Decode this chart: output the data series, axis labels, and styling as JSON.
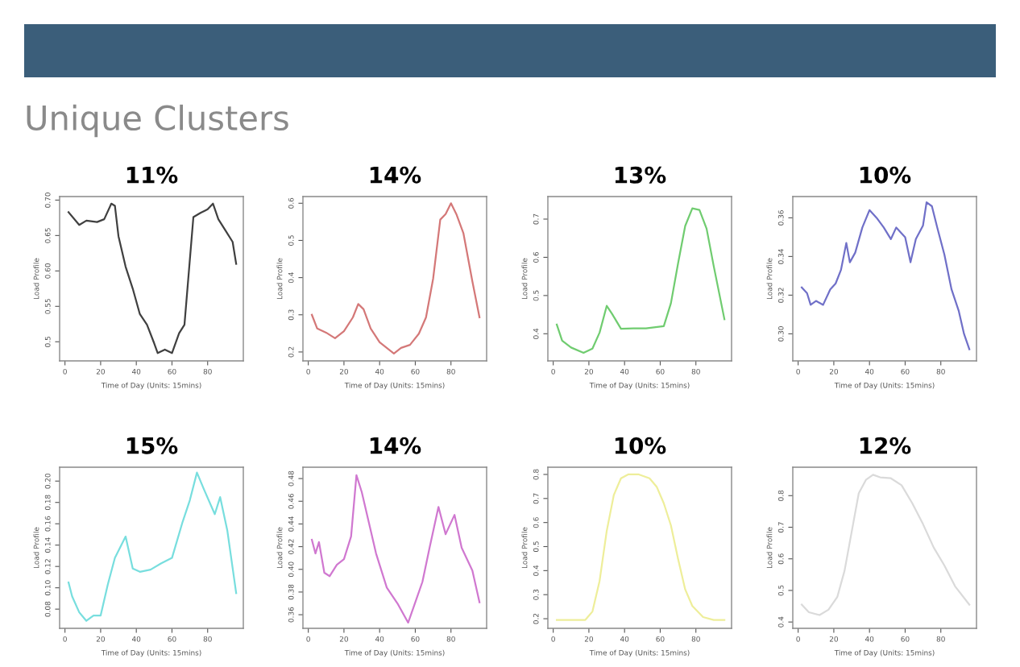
{
  "chart_data": [
    {
      "type": "other",
      "title": "Unique Clusters"
    },
    {
      "type": "line",
      "title": "11%",
      "xlabel": "Time of Day (Units: 15mins)",
      "ylabel": "Load Profile",
      "xlim": [
        -3,
        100
      ],
      "xticks": [
        0,
        20,
        40,
        60,
        80
      ],
      "ylim": [
        0.473,
        0.705
      ],
      "yticks": [
        0.5,
        0.55,
        {
          "value": 0.6,
          "label": "0.60"
        },
        0.65,
        {
          "value": 0.7,
          "label": "0.70"
        }
      ],
      "x": [
        2,
        8,
        12,
        18,
        22,
        26,
        28,
        30,
        34,
        38,
        42,
        46,
        50,
        52,
        56,
        60,
        64,
        67,
        72,
        76,
        80,
        83,
        86,
        90,
        94,
        96
      ],
      "series": [
        {
          "color": "#404040",
          "values": [
            0.683,
            0.665,
            0.671,
            0.669,
            0.673,
            0.695,
            0.692,
            0.649,
            0.606,
            0.575,
            0.539,
            0.524,
            0.498,
            0.484,
            0.489,
            0.484,
            0.512,
            0.524,
            0.676,
            0.682,
            0.687,
            0.695,
            0.673,
            0.657,
            0.641,
            0.61
          ]
        }
      ]
    },
    {
      "type": "line",
      "title": "14%",
      "xlabel": "Time of Day (Units: 15mins)",
      "ylabel": "Load Profile",
      "xlim": [
        -3,
        100
      ],
      "xticks": [
        0,
        20,
        40,
        60,
        80
      ],
      "ylim": [
        0.176,
        0.618
      ],
      "yticks": [
        0.2,
        0.3,
        0.4,
        0.5,
        0.6
      ],
      "x": [
        2,
        5,
        10,
        15,
        20,
        25,
        28,
        31,
        35,
        40,
        48,
        52,
        57,
        62,
        66,
        70,
        74,
        77,
        80,
        83,
        87,
        92,
        96
      ],
      "series": [
        {
          "color": "#d47878",
          "values": [
            0.3,
            0.263,
            0.252,
            0.237,
            0.256,
            0.293,
            0.329,
            0.315,
            0.263,
            0.226,
            0.196,
            0.211,
            0.219,
            0.249,
            0.293,
            0.397,
            0.556,
            0.571,
            0.6,
            0.571,
            0.519,
            0.39,
            0.293
          ]
        }
      ]
    },
    {
      "type": "line",
      "title": "13%",
      "xlabel": "Time of Day (Units: 15mins)",
      "ylabel": "Load Profile",
      "xlim": [
        -3,
        100
      ],
      "xticks": [
        0,
        20,
        40,
        60,
        80
      ],
      "ylim": [
        0.329,
        0.759
      ],
      "yticks": [
        0.4,
        0.5,
        0.6,
        0.7
      ],
      "x": [
        2,
        5,
        10,
        17,
        22,
        26,
        30,
        33,
        38,
        45,
        52,
        62,
        66,
        70,
        74,
        78,
        82,
        86,
        90,
        96
      ],
      "series": [
        {
          "color": "#70cc70",
          "values": [
            0.424,
            0.382,
            0.364,
            0.35,
            0.361,
            0.403,
            0.473,
            0.452,
            0.413,
            0.414,
            0.414,
            0.42,
            0.48,
            0.584,
            0.682,
            0.728,
            0.724,
            0.675,
            0.577,
            0.438
          ]
        }
      ]
    },
    {
      "type": "line",
      "title": "10%",
      "xlabel": "Time of Day (Units: 15mins)",
      "ylabel": "Load Profile",
      "xlim": [
        -3,
        100
      ],
      "xticks": [
        0,
        20,
        40,
        60,
        80
      ],
      "ylim": [
        0.286,
        0.371
      ],
      "yticks": [
        {
          "value": 0.3,
          "label": "0.30"
        },
        0.32,
        0.34,
        0.36
      ],
      "x": [
        2,
        5,
        7,
        10,
        14,
        18,
        21,
        24,
        27,
        29,
        32,
        36,
        40,
        44,
        48,
        52,
        55,
        60,
        63,
        66,
        70,
        72,
        75,
        78,
        82,
        86,
        90,
        93,
        96
      ],
      "series": [
        {
          "color": "#7070c8",
          "values": [
            0.324,
            0.321,
            0.315,
            0.317,
            0.315,
            0.323,
            0.326,
            0.333,
            0.347,
            0.337,
            0.342,
            0.355,
            0.364,
            0.36,
            0.355,
            0.349,
            0.355,
            0.35,
            0.337,
            0.349,
            0.356,
            0.368,
            0.366,
            0.355,
            0.341,
            0.323,
            0.312,
            0.3,
            0.292
          ]
        }
      ]
    },
    {
      "type": "line",
      "title": "15%",
      "xlabel": "Time of Day (Units: 15mins)",
      "ylabel": "Load Profile",
      "xlim": [
        -3,
        100
      ],
      "xticks": [
        0,
        20,
        40,
        60,
        80
      ],
      "ylim": [
        0.062,
        0.213
      ],
      "yticks": [
        0.08,
        {
          "value": 0.1,
          "label": "0.10"
        },
        0.12,
        0.14,
        0.16,
        0.18,
        {
          "value": 0.2,
          "label": "0.20"
        }
      ],
      "x": [
        2,
        4,
        8,
        12,
        16,
        20,
        24,
        28,
        34,
        38,
        42,
        48,
        54,
        60,
        66,
        70,
        74,
        78,
        84,
        87,
        91,
        96
      ],
      "series": [
        {
          "color": "#78dede",
          "values": [
            0.105,
            0.092,
            0.077,
            0.069,
            0.074,
            0.074,
            0.103,
            0.128,
            0.148,
            0.118,
            0.115,
            0.117,
            0.123,
            0.128,
            0.162,
            0.182,
            0.208,
            0.192,
            0.169,
            0.185,
            0.154,
            0.095
          ]
        }
      ]
    },
    {
      "type": "line",
      "title": "14%",
      "xlabel": "Time of Day (Units: 15mins)",
      "ylabel": "Load Profile",
      "xlim": [
        -3,
        100
      ],
      "xticks": [
        0,
        20,
        40,
        60,
        80
      ],
      "ylim": [
        0.348,
        0.49
      ],
      "yticks": [
        0.36,
        0.38,
        {
          "value": 0.4,
          "label": "0.40"
        },
        0.42,
        0.44,
        0.46,
        0.48
      ],
      "x": [
        2,
        4,
        6,
        9,
        12,
        16,
        20,
        24,
        27,
        30,
        34,
        38,
        44,
        50,
        56,
        60,
        64,
        68,
        73,
        77,
        82,
        86,
        92,
        96
      ],
      "series": [
        {
          "color": "#d078d0",
          "values": [
            0.426,
            0.414,
            0.424,
            0.397,
            0.394,
            0.404,
            0.409,
            0.429,
            0.483,
            0.468,
            0.441,
            0.414,
            0.384,
            0.37,
            0.353,
            0.371,
            0.389,
            0.419,
            0.455,
            0.431,
            0.448,
            0.419,
            0.399,
            0.371
          ]
        }
      ]
    },
    {
      "type": "line",
      "title": "10%",
      "xlabel": "Time of Day (Units: 15mins)",
      "ylabel": "Load Profile",
      "xlim": [
        -3,
        100
      ],
      "xticks": [
        0,
        20,
        40,
        60,
        80
      ],
      "ylim": [
        0.16,
        0.83
      ],
      "yticks": [
        0.2,
        0.3,
        0.4,
        0.5,
        0.6,
        0.7,
        0.8
      ],
      "x": [
        2,
        10,
        18,
        22,
        26,
        30,
        34,
        38,
        42,
        48,
        54,
        58,
        62,
        66,
        70,
        74,
        78,
        84,
        90,
        96
      ],
      "series": [
        {
          "color": "#eeee9a",
          "values": [
            0.195,
            0.195,
            0.195,
            0.23,
            0.357,
            0.565,
            0.715,
            0.784,
            0.8,
            0.8,
            0.784,
            0.749,
            0.68,
            0.588,
            0.449,
            0.322,
            0.253,
            0.207,
            0.195,
            0.195
          ]
        }
      ]
    },
    {
      "type": "line",
      "title": "12%",
      "xlabel": "Time of Day (Units: 15mins)",
      "ylabel": "Load Profile",
      "xlim": [
        -3,
        100
      ],
      "xticks": [
        0,
        20,
        40,
        60,
        80
      ],
      "ylim": [
        0.38,
        0.89
      ],
      "yticks": [
        0.4,
        0.5,
        0.6,
        0.7,
        0.8
      ],
      "x": [
        2,
        6,
        12,
        17,
        22,
        26,
        30,
        34,
        38,
        42,
        46,
        52,
        58,
        64,
        70,
        76,
        82,
        88,
        96
      ],
      "series": [
        {
          "color": "#dadada",
          "values": [
            0.455,
            0.431,
            0.422,
            0.439,
            0.48,
            0.562,
            0.685,
            0.808,
            0.85,
            0.866,
            0.858,
            0.855,
            0.833,
            0.776,
            0.71,
            0.636,
            0.579,
            0.513,
            0.455
          ]
        }
      ]
    }
  ]
}
